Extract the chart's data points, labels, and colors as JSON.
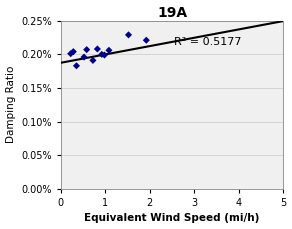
{
  "title": "19A",
  "xlabel": "Equivalent Wind Speed (mi/h)",
  "ylabel": "Damping Ratio",
  "xlim": [
    0,
    5.0
  ],
  "ylim": [
    0,
    0.0025
  ],
  "xticks": [
    0.0,
    1.0,
    2.0,
    3.0,
    4.0,
    5.0
  ],
  "yticks": [
    0.0,
    0.0005,
    0.001,
    0.0015,
    0.002,
    0.0025
  ],
  "ytick_labels": [
    "0.00%",
    "0.05%",
    "0.10%",
    "0.15%",
    "0.20%",
    "0.25%"
  ],
  "data_x": [
    0.22,
    0.28,
    0.35,
    0.52,
    0.58,
    0.72,
    0.82,
    0.92,
    0.98,
    1.08,
    1.52,
    1.92
  ],
  "data_y": [
    0.00201,
    0.00204,
    0.00183,
    0.00196,
    0.00207,
    0.00191,
    0.00208,
    0.002,
    0.00199,
    0.00206,
    0.00229,
    0.00221
  ],
  "data_color": "#00008B",
  "line_x": [
    0.0,
    5.0
  ],
  "line_slope": 0.000124,
  "line_intercept": 0.001875,
  "line_color": "#000000",
  "r_squared_text": "R² = 0.5177",
  "r_squared_x": 2.55,
  "r_squared_y": 0.00218,
  "title_fontsize": 10,
  "label_fontsize": 7.5,
  "tick_fontsize": 7,
  "annotation_fontsize": 8
}
